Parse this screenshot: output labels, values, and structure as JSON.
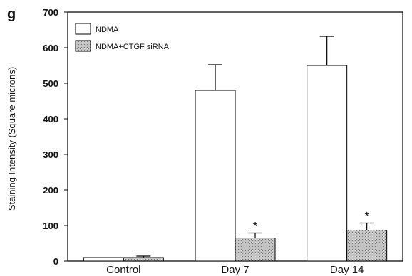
{
  "panel_label": "g",
  "chart_data": {
    "type": "bar",
    "title": "",
    "xlabel": "",
    "ylabel": "Staining Intensity (Square microns)",
    "categories": [
      "Control",
      "Day 7",
      "Day 14"
    ],
    "ylim": [
      0,
      700
    ],
    "yticks": [
      0,
      100,
      200,
      300,
      400,
      500,
      600,
      700
    ],
    "grid": false,
    "legend_position": "top-left",
    "series": [
      {
        "name": "NDMA",
        "values": [
          10,
          480,
          550
        ],
        "errors": [
          0,
          72,
          82
        ],
        "fill": "#ffffff",
        "pattern": "none",
        "significance": [
          "",
          "",
          ""
        ]
      },
      {
        "name": "NDMA+CTGF siRNA",
        "values": [
          10,
          65,
          87
        ],
        "errors": [
          4,
          14,
          20
        ],
        "fill": "#bdbdbd",
        "pattern": "stipple",
        "significance": [
          "",
          "*",
          "*"
        ]
      }
    ]
  }
}
